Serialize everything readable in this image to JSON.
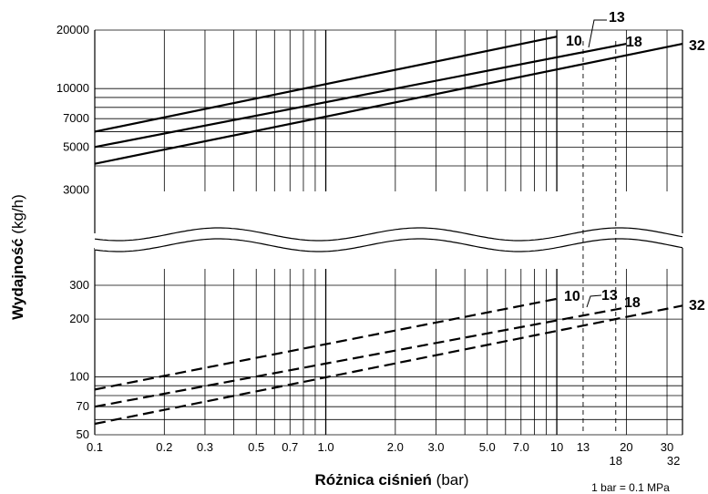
{
  "chart_data": {
    "type": "line",
    "x_scale": "log",
    "y_scale": "log",
    "x_range": [
      0.1,
      35
    ],
    "upper_y_range": [
      4000,
      20000
    ],
    "lower_y_range": [
      50,
      300
    ],
    "x_ticks": [
      "0.1",
      "0.2",
      "0.3",
      "0.5",
      "0.7",
      "1.0",
      "2.0",
      "3.0",
      "5.0",
      "7.0",
      "10",
      "13",
      "20",
      "30"
    ],
    "x_ticks_lower": [
      "18",
      "32"
    ],
    "upper_y_ticks": [
      "20000",
      "10000",
      "7000",
      "5000",
      "3000"
    ],
    "lower_y_ticks": [
      "300",
      "200",
      "100",
      "70",
      "50"
    ],
    "xlabel_bold": "Różnica ciśnień",
    "xlabel_unit": "(bar)",
    "ylabel_bold": "Wydajność",
    "ylabel_unit": "(kg/h)",
    "unit_note": "1 bar = 0.1 MPa",
    "grid": true,
    "series": [
      {
        "name": "10",
        "style": "solid",
        "x": [
          0.1,
          10
        ],
        "y": [
          6000,
          18500
        ]
      },
      {
        "name": "18",
        "style": "solid",
        "x": [
          0.1,
          20
        ],
        "y": [
          5000,
          17000
        ]
      },
      {
        "name": "32",
        "style": "solid",
        "x": [
          0.1,
          35
        ],
        "y": [
          4100,
          17000
        ]
      },
      {
        "name": "10",
        "style": "dashed",
        "x": [
          0.1,
          10
        ],
        "y": [
          86,
          255
        ]
      },
      {
        "name": "18",
        "style": "dashed",
        "x": [
          0.1,
          20
        ],
        "y": [
          70,
          230
        ]
      },
      {
        "name": "32",
        "style": "dashed",
        "x": [
          0.1,
          35
        ],
        "y": [
          57,
          235
        ]
      }
    ],
    "marker_lines": [
      {
        "x": 13,
        "label": "13"
      },
      {
        "x": 18,
        "label": "18"
      }
    ],
    "upper_labels": [
      "13",
      "10",
      "18",
      "32"
    ],
    "lower_labels": [
      "10",
      "13",
      "18",
      "32"
    ]
  }
}
